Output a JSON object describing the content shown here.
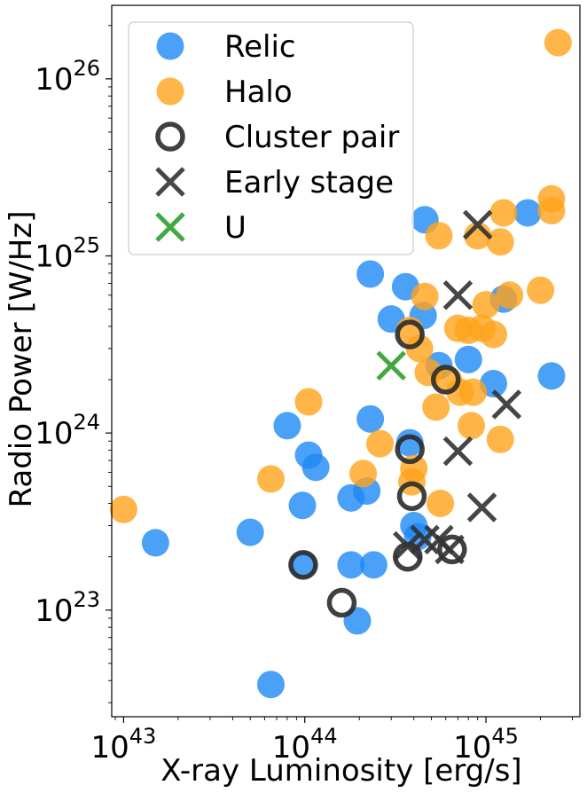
{
  "chart_data": {
    "type": "scatter",
    "xlabel": "X-ray Luminosity [erg/s]",
    "ylabel": "Radio Power [W/Hz]",
    "xscale": "log",
    "yscale": "log",
    "xlim": [
      8.6e+42,
      3.3e+45
    ],
    "ylim": [
      2.5e+22,
      2.6e+26
    ],
    "x_ticks": [
      {
        "base": "10",
        "exp": "43",
        "value": 1e+43
      },
      {
        "base": "10",
        "exp": "44",
        "value": 1e+44
      },
      {
        "base": "10",
        "exp": "45",
        "value": 1e+45
      }
    ],
    "y_ticks": [
      {
        "base": "10",
        "exp": "23",
        "value": 1e+23
      },
      {
        "base": "10",
        "exp": "24",
        "value": 1e+24
      },
      {
        "base": "10",
        "exp": "25",
        "value": 1e+25
      },
      {
        "base": "10",
        "exp": "26",
        "value": 1e+26
      }
    ],
    "grid": false,
    "legend_position": "top-left",
    "colors": {
      "relic": "#1e88f5",
      "halo": "#ffa31a",
      "cluster_pair": "#2b2b2b",
      "early_stage": "#333333",
      "u": "#2ca02c"
    },
    "series": [
      {
        "name": "Relic",
        "marker": "filled-circle",
        "points": [
          [
            1.5e+43,
            2.4e+23
          ],
          [
            5e+43,
            2.75e+23
          ],
          [
            6.5e+43,
            3.8e+22
          ],
          [
            8e+43,
            1.1e+24
          ],
          [
            9.7e+43,
            3.9e+23
          ],
          [
            1.05e+44,
            7.5e+23
          ],
          [
            1.15e+44,
            6.4e+23
          ],
          [
            9.8e+43,
            1.8e+23
          ],
          [
            1.8e+44,
            4.3e+23
          ],
          [
            1.95e+44,
            8.7e+22
          ],
          [
            1.8e+44,
            1.8e+23
          ],
          [
            2.2e+44,
            4.7e+23
          ],
          [
            2.3e+44,
            1.2e+24
          ],
          [
            2.4e+44,
            1.8e+23
          ],
          [
            2.3e+44,
            7.9e+24
          ],
          [
            3e+44,
            4.4e+24
          ],
          [
            3.6e+44,
            6.7e+24
          ],
          [
            3.8e+44,
            8.8e+23
          ],
          [
            4e+44,
            3e+23
          ],
          [
            4.2e+44,
            2.6e+23
          ],
          [
            4.5e+44,
            4.6e+24
          ],
          [
            4.6e+44,
            1.6e+25
          ],
          [
            5.5e+44,
            2.4e+24
          ],
          [
            8e+44,
            2.6e+24
          ],
          [
            1.1e+45,
            1.9e+24
          ],
          [
            1.25e+45,
            5.7e+24
          ],
          [
            1.7e+45,
            1.75e+25
          ],
          [
            2.3e+45,
            2.1e+24
          ]
        ]
      },
      {
        "name": "Halo",
        "marker": "filled-circle",
        "points": [
          [
            1e+43,
            3.7e+23
          ],
          [
            6.5e+43,
            5.5e+23
          ],
          [
            1.05e+44,
            1.5e+24
          ],
          [
            2.1e+44,
            5.9e+23
          ],
          [
            2.6e+44,
            8.7e+23
          ],
          [
            3.8e+44,
            3.8e+24
          ],
          [
            4e+44,
            6.3e+23
          ],
          [
            3.9e+44,
            5.3e+23
          ],
          [
            4.3e+44,
            3e+24
          ],
          [
            4.6e+44,
            5.9e+24
          ],
          [
            4.8e+44,
            2.2e+24
          ],
          [
            5.3e+44,
            1.4e+24
          ],
          [
            5.5e+44,
            1.3e+25
          ],
          [
            5.6e+44,
            4e+23
          ],
          [
            6.2e+44,
            2e+24
          ],
          [
            7e+44,
            3.9e+24
          ],
          [
            7.2e+44,
            1.7e+24
          ],
          [
            8e+44,
            3.8e+24
          ],
          [
            8.5e+44,
            1.7e+24
          ],
          [
            8.3e+44,
            1.1e+24
          ],
          [
            9e+44,
            1.3e+25
          ],
          [
            9.5e+44,
            3.9e+24
          ],
          [
            1e+45,
            5.3e+24
          ],
          [
            1.1e+45,
            3.6e+24
          ],
          [
            1.2e+45,
            9.2e+23
          ],
          [
            1.2e+45,
            1.2e+25
          ],
          [
            1.25e+45,
            1.75e+25
          ],
          [
            1.35e+45,
            6e+24
          ],
          [
            2e+45,
            6.4e+24
          ],
          [
            2.3e+45,
            2.1e+25
          ],
          [
            2.3e+45,
            1.8e+25
          ],
          [
            2.5e+45,
            1.6e+26
          ]
        ]
      },
      {
        "name": "Cluster pair",
        "marker": "open-circle",
        "points": [
          [
            9.8e+43,
            1.8e+23
          ],
          [
            1.6e+44,
            1.1e+23
          ],
          [
            3.7e+44,
            2e+23
          ],
          [
            3.9e+44,
            4.4e+23
          ],
          [
            3.8e+44,
            8.1e+23
          ],
          [
            3.8e+44,
            3.6e+24
          ],
          [
            6e+44,
            2e+24
          ],
          [
            6.5e+44,
            2.2e+23
          ]
        ]
      },
      {
        "name": "Early stage",
        "marker": "x",
        "points": [
          [
            3.7e+44,
            2.3e+23
          ],
          [
            4.6e+44,
            2.5e+23
          ],
          [
            5.5e+44,
            2.5e+23
          ],
          [
            6.3e+44,
            2.2e+23
          ],
          [
            7e+44,
            7.9e+23
          ],
          [
            7e+44,
            6e+24
          ],
          [
            9e+44,
            1.5e+25
          ],
          [
            9.5e+44,
            3.8e+23
          ],
          [
            1.3e+45,
            1.45e+24
          ]
        ]
      },
      {
        "name": "U",
        "marker": "x",
        "points": [
          [
            3e+44,
            2.4e+24
          ]
        ]
      }
    ]
  }
}
